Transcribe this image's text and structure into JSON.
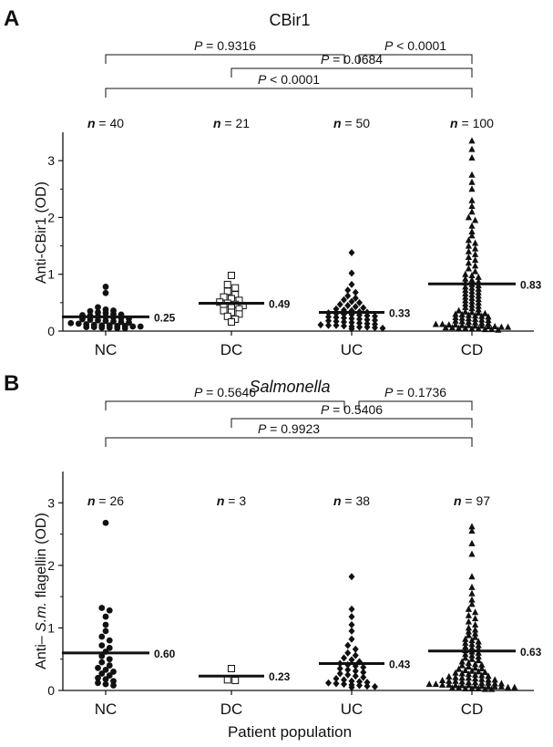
{
  "chart_data": [
    {
      "type": "scatter",
      "panel": "A",
      "title": "CBir1",
      "ylabel": "Anti-CBir1 (OD)",
      "xlabel": "",
      "ylim": [
        0,
        3.5
      ],
      "yticks": [
        "0",
        "1",
        "2",
        "3"
      ],
      "categories": [
        "NC",
        "DC",
        "UC",
        "CD"
      ],
      "n_labels": [
        "40",
        "21",
        "50",
        "100"
      ],
      "comparisons": [
        {
          "from": 0,
          "to": 2,
          "label": "0.9316",
          "op": "="
        },
        {
          "from": 2,
          "to": 3,
          "label": "0.0001",
          "op": "<"
        },
        {
          "from": 1,
          "to": 3,
          "label": "0.0684",
          "op": "="
        },
        {
          "from": 0,
          "to": 3,
          "label": "0.0001",
          "op": "<"
        }
      ],
      "groups": [
        {
          "name": "NC",
          "marker": "circle-filled",
          "mean": 0.25,
          "mean_label": "0.25",
          "values": [
            0.78,
            0.67,
            0.42,
            0.38,
            0.36,
            0.35,
            0.33,
            0.32,
            0.3,
            0.29,
            0.28,
            0.27,
            0.26,
            0.25,
            0.24,
            0.23,
            0.22,
            0.21,
            0.2,
            0.19,
            0.18,
            0.17,
            0.16,
            0.15,
            0.14,
            0.13,
            0.12,
            0.11,
            0.1,
            0.1,
            0.09,
            0.09,
            0.08,
            0.08,
            0.07,
            0.07,
            0.06,
            0.06,
            0.05,
            0.05
          ]
        },
        {
          "name": "DC",
          "marker": "square-open",
          "mean": 0.49,
          "mean_label": "0.49",
          "values": [
            0.98,
            0.82,
            0.76,
            0.7,
            0.64,
            0.6,
            0.57,
            0.54,
            0.51,
            0.49,
            0.47,
            0.45,
            0.43,
            0.41,
            0.39,
            0.36,
            0.33,
            0.3,
            0.26,
            0.21,
            0.16
          ]
        },
        {
          "name": "UC",
          "marker": "diamond-filled",
          "mean": 0.33,
          "mean_label": "0.33",
          "values": [
            1.38,
            1.02,
            0.82,
            0.72,
            0.68,
            0.62,
            0.58,
            0.55,
            0.52,
            0.5,
            0.47,
            0.45,
            0.43,
            0.41,
            0.39,
            0.37,
            0.36,
            0.34,
            0.33,
            0.32,
            0.31,
            0.3,
            0.29,
            0.28,
            0.27,
            0.26,
            0.25,
            0.24,
            0.23,
            0.22,
            0.21,
            0.2,
            0.19,
            0.18,
            0.17,
            0.16,
            0.15,
            0.14,
            0.13,
            0.12,
            0.11,
            0.1,
            0.1,
            0.09,
            0.08,
            0.07,
            0.07,
            0.06,
            0.05,
            0.04
          ]
        },
        {
          "name": "CD",
          "marker": "triangle-filled",
          "mean": 0.83,
          "mean_label": "0.83",
          "values": [
            3.35,
            3.2,
            3.05,
            2.75,
            2.62,
            2.5,
            2.3,
            2.2,
            2.1,
            2.0,
            1.95,
            1.85,
            1.75,
            1.68,
            1.6,
            1.55,
            1.5,
            1.45,
            1.4,
            1.35,
            1.3,
            1.25,
            1.2,
            1.15,
            1.1,
            1.05,
            1.0,
            0.98,
            0.95,
            0.92,
            0.9,
            0.87,
            0.85,
            0.82,
            0.8,
            0.78,
            0.76,
            0.74,
            0.72,
            0.7,
            0.68,
            0.66,
            0.64,
            0.62,
            0.6,
            0.58,
            0.56,
            0.54,
            0.52,
            0.5,
            0.48,
            0.46,
            0.44,
            0.42,
            0.4,
            0.38,
            0.36,
            0.34,
            0.33,
            0.32,
            0.31,
            0.3,
            0.29,
            0.28,
            0.27,
            0.26,
            0.25,
            0.24,
            0.23,
            0.22,
            0.21,
            0.2,
            0.19,
            0.18,
            0.17,
            0.16,
            0.15,
            0.14,
            0.13,
            0.12,
            0.12,
            0.11,
            0.11,
            0.1,
            0.1,
            0.09,
            0.09,
            0.08,
            0.08,
            0.07,
            0.07,
            0.06,
            0.06,
            0.05,
            0.05,
            0.04,
            0.04,
            0.03,
            0.03,
            0.02
          ]
        }
      ]
    },
    {
      "type": "scatter",
      "panel": "B",
      "title": "Salmonella",
      "ylabel": "Anti–S.m. flagellin (OD)",
      "xlabel": "Patient population",
      "ylim": [
        0,
        3.5
      ],
      "yticks": [
        "0",
        "1",
        "2",
        "3"
      ],
      "categories": [
        "NC",
        "DC",
        "UC",
        "CD"
      ],
      "n_labels": [
        "26",
        "3",
        "38",
        "97"
      ],
      "comparisons": [
        {
          "from": 0,
          "to": 2,
          "label": "0.5646",
          "op": "="
        },
        {
          "from": 2,
          "to": 3,
          "label": "0.1736",
          "op": "="
        },
        {
          "from": 1,
          "to": 3,
          "label": "0.5406",
          "op": "="
        },
        {
          "from": 0,
          "to": 3,
          "label": "0.9923",
          "op": "="
        }
      ],
      "groups": [
        {
          "name": "NC",
          "marker": "circle-filled",
          "mean": 0.6,
          "mean_label": "0.60",
          "values": [
            2.68,
            1.32,
            1.28,
            1.18,
            1.05,
            0.95,
            0.86,
            0.8,
            0.72,
            0.68,
            0.62,
            0.55,
            0.5,
            0.45,
            0.4,
            0.36,
            0.33,
            0.3,
            0.27,
            0.24,
            0.2,
            0.18,
            0.15,
            0.12,
            0.1,
            0.08
          ]
        },
        {
          "name": "DC",
          "marker": "square-open",
          "mean": 0.23,
          "mean_label": "0.23",
          "values": [
            0.35,
            0.17,
            0.16
          ]
        },
        {
          "name": "UC",
          "marker": "diamond-filled",
          "mean": 0.43,
          "mean_label": "0.43",
          "values": [
            1.82,
            1.3,
            1.18,
            1.05,
            0.95,
            0.82,
            0.72,
            0.66,
            0.6,
            0.56,
            0.52,
            0.49,
            0.46,
            0.43,
            0.41,
            0.39,
            0.37,
            0.35,
            0.33,
            0.31,
            0.29,
            0.27,
            0.25,
            0.23,
            0.21,
            0.19,
            0.17,
            0.15,
            0.14,
            0.13,
            0.12,
            0.11,
            0.1,
            0.09,
            0.08,
            0.07,
            0.06,
            0.05
          ]
        },
        {
          "name": "CD",
          "marker": "triangle-filled",
          "mean": 0.63,
          "mean_label": "0.63",
          "values": [
            2.62,
            2.55,
            2.35,
            2.18,
            1.82,
            1.65,
            1.55,
            1.45,
            1.38,
            1.3,
            1.25,
            1.2,
            1.15,
            1.1,
            1.05,
            1.0,
            0.97,
            0.94,
            0.91,
            0.88,
            0.85,
            0.82,
            0.8,
            0.78,
            0.76,
            0.74,
            0.72,
            0.7,
            0.68,
            0.66,
            0.64,
            0.62,
            0.6,
            0.58,
            0.56,
            0.54,
            0.52,
            0.5,
            0.48,
            0.46,
            0.44,
            0.42,
            0.41,
            0.4,
            0.38,
            0.36,
            0.35,
            0.34,
            0.32,
            0.31,
            0.3,
            0.29,
            0.28,
            0.27,
            0.26,
            0.25,
            0.24,
            0.23,
            0.22,
            0.21,
            0.2,
            0.2,
            0.19,
            0.18,
            0.17,
            0.17,
            0.16,
            0.15,
            0.15,
            0.14,
            0.13,
            0.13,
            0.12,
            0.12,
            0.11,
            0.11,
            0.1,
            0.1,
            0.09,
            0.09,
            0.08,
            0.08,
            0.08,
            0.07,
            0.07,
            0.06,
            0.06,
            0.06,
            0.05,
            0.05,
            0.04,
            0.04,
            0.03,
            0.03,
            0.03,
            0.02,
            0.02
          ]
        }
      ]
    }
  ]
}
